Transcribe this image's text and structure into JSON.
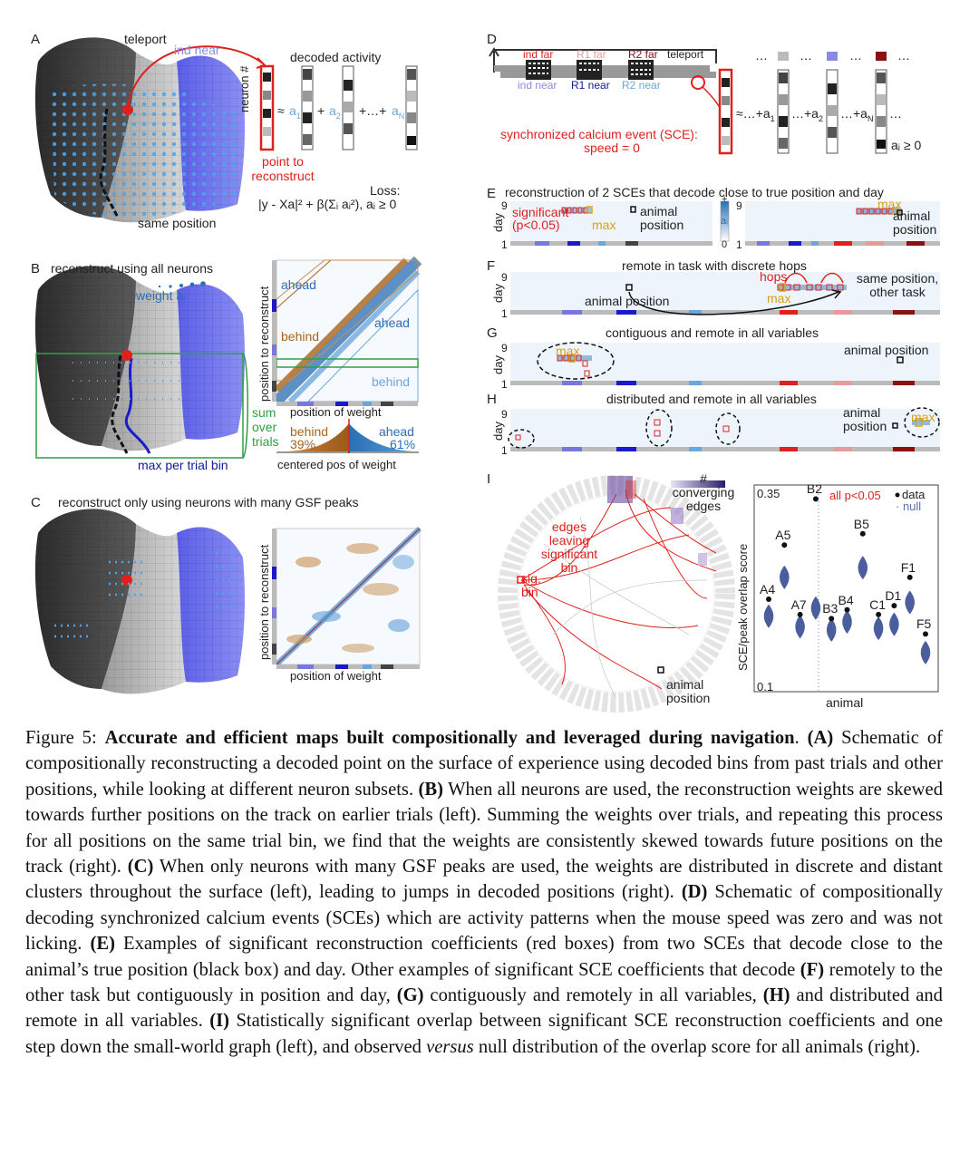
{
  "panel_a": {
    "letter": "A",
    "teleport": "teleport",
    "ind_near": "ind near",
    "decoded_activity": "decoded activity",
    "neuron_axis": "neuron #",
    "approx": "≈",
    "a1": "a",
    "a1_sub": "1",
    "a2": "a",
    "a2_sub": "2",
    "plus": "+",
    "plus_dots": "+…+",
    "aN": "a",
    "aN_sub": "N",
    "point_to_reconstruct": "point to reconstruct",
    "loss_label": "Loss:",
    "loss_formula": "|y - Xa|² + β(Σᵢ aᵢ²),   aᵢ ≥ 0",
    "same_position": "same position"
  },
  "panel_b": {
    "letter": "B",
    "title": "reconstruct using all neurons",
    "weight_label": "weight aᵢ",
    "ahead_top": "ahead",
    "ahead_mid": "ahead",
    "behind_mid": "behind",
    "behind_right": "behind",
    "y_axis": "position to reconstruct",
    "x_axis": "position of weight",
    "sum_over_trials": "sum over trials",
    "max_per_trial_bin": "max per trial bin",
    "behind_pct_label": "behind",
    "behind_pct": "39%",
    "ahead_pct_label": "ahead",
    "ahead_pct": "61%",
    "centered_pos": "centered pos of weight"
  },
  "panel_c": {
    "letter": "C",
    "title": "reconstruct only using neurons with many GSF peaks",
    "y_axis": "position to reconstruct",
    "x_axis": "position of weight"
  },
  "panel_d": {
    "letter": "D",
    "ind_far": "ind far",
    "r1_far": "R1 far",
    "r2_far": "R2 far",
    "teleport": "teleport",
    "ind_near": "ind near",
    "r1_near": "R1 near",
    "r2_near": "R2 near",
    "sce_line1": "synchronized calcium event (SCE):",
    "sce_line2": "speed = 0",
    "approx_sum": "≈…+a",
    "a1_sub": "1",
    "sum2": "…+a",
    "a2_sub": "2",
    "sum3": "…+a",
    "aN_sub": "N",
    "trail": "…",
    "constraint": "aᵢ ≥ 0",
    "dots": "…"
  },
  "panel_e": {
    "letter": "E",
    "title": "reconstruction of 2 SCEs that decode close to true position and day",
    "day": "day",
    "day_9": "9",
    "day_1": "1",
    "significant": "significant",
    "p_value": "(p<0.05)",
    "max": "max",
    "animal_position": "animal position",
    "colorbar_plus": "+",
    "colorbar_a": "aᵢ",
    "colorbar_0": "0",
    "right_max": "max",
    "right_animal": "animal position"
  },
  "panel_f": {
    "letter": "F",
    "title": "remote in task with discrete hops",
    "day": "day",
    "day_9": "9",
    "day_1": "1",
    "hops": "hops",
    "max": "max",
    "animal_position": "animal position",
    "same_position": "same position, other task"
  },
  "panel_g": {
    "letter": "G",
    "title": "contiguous and remote in all variables",
    "day": "day",
    "day_9": "9",
    "day_1": "1",
    "max": "max",
    "animal_position": "animal position"
  },
  "panel_h": {
    "letter": "H",
    "title": "distributed and remote in all variables",
    "day": "day",
    "day_9": "9",
    "day_1": "1",
    "max": "max",
    "animal_position": "animal position"
  },
  "panel_i": {
    "letter": "I",
    "converging_edges": "# converging edges",
    "edges_leaving": "edges leaving significant bin",
    "sig_bin": "sig. bin",
    "animal_position": "animal position",
    "y_axis": "SCE/peak overlap score",
    "y_max": "0.35",
    "y_min": "0.1",
    "x_axis": "animal",
    "all_p": "all p<0.05",
    "legend_data": "data",
    "legend_null": "null"
  },
  "violin_chart": {
    "type": "scatter",
    "ylabel": "SCE/peak overlap score",
    "xlabel": "animal",
    "ylim": [
      0.1,
      0.35
    ],
    "points": [
      {
        "animal": "A4",
        "data": 0.211,
        "null": 0.19
      },
      {
        "animal": "A5",
        "data": 0.278,
        "null": 0.238
      },
      {
        "animal": "A7",
        "data": 0.192,
        "null": 0.177
      },
      {
        "animal": "B2",
        "data": 0.335,
        "null": 0.2
      },
      {
        "animal": "B3",
        "data": 0.187,
        "null": 0.173
      },
      {
        "animal": "B4",
        "data": 0.198,
        "null": 0.183
      },
      {
        "animal": "B5",
        "data": 0.292,
        "null": 0.25
      },
      {
        "animal": "C1",
        "data": 0.192,
        "null": 0.175
      },
      {
        "animal": "D1",
        "data": 0.203,
        "null": 0.18
      },
      {
        "animal": "F1",
        "data": 0.238,
        "null": 0.207
      },
      {
        "animal": "F5",
        "data": 0.168,
        "null": 0.145
      }
    ]
  },
  "caption": {
    "fig": "Figure 5: ",
    "title": "Accurate and efficient maps built compositionally and leveraged during navigation",
    "title_end": ". ",
    "a_label": "(A)",
    "a_text": " Schematic of compositionally reconstructing a decoded point on the surface of experience using decoded bins from past trials and other positions, while looking at different neuron subsets. ",
    "b_label": "(B)",
    "b_text": " When all neurons are used, the reconstruction weights are skewed towards further positions on the track on earlier trials (left). Summing the weights over trials, and repeating this process for all positions on the same trial bin, we find that the weights are consistently skewed towards future positions on the track (right). ",
    "c_label": "(C)",
    "c_text": " When only neurons with many GSF peaks are used, the weights are distributed in discrete and distant clusters throughout the surface (left), leading to jumps in decoded positions (right). ",
    "d_label": "(D)",
    "d_text": " Schematic of compositionally decoding synchronized calcium events (SCEs) which are activity patterns when the mouse speed was zero and was not licking. ",
    "e_label": "(E)",
    "e_text": " Examples of significant reconstruction coefficients (red boxes) from two SCEs that decode close to the animal’s true position (black box) and day. Other examples of significant SCE coefficients that decode ",
    "f_label": "(F)",
    "f_text": " remotely to the other task but contiguously in position and day, ",
    "g_label": "(G)",
    "g_text": " contiguously and remotely in all variables, ",
    "h_label": "(H)",
    "h_text": " and distributed and remote in all variables. ",
    "i_label": "(I)",
    "i_text": " Statistically significant overlap between significant SCE reconstruction coefficients and one step down the small-world graph (left), and observed ",
    "versus": "versus",
    "i_text2": " null distribution of the overlap score for all animals (right)."
  }
}
